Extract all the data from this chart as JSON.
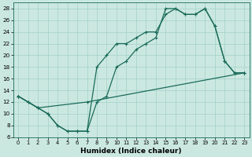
{
  "title": "",
  "xlabel": "Humidex (Indice chaleur)",
  "ylabel": "",
  "bg_color": "#cbe8e0",
  "grid_color": "#a8d4cc",
  "line_color": "#1a6b5a",
  "xlim": [
    -0.5,
    23.5
  ],
  "ylim": [
    6,
    29
  ],
  "xticks": [
    0,
    1,
    2,
    3,
    4,
    5,
    6,
    7,
    8,
    9,
    10,
    11,
    12,
    13,
    14,
    15,
    16,
    17,
    18,
    19,
    20,
    21,
    22,
    23
  ],
  "yticks": [
    6,
    8,
    10,
    12,
    14,
    16,
    18,
    20,
    22,
    24,
    26,
    28
  ],
  "line1_x": [
    0,
    1,
    2,
    3,
    4,
    5,
    6,
    7,
    8,
    9,
    10,
    11,
    12,
    13,
    14,
    15,
    16,
    17,
    18,
    19,
    20,
    21,
    22,
    23
  ],
  "line1_y": [
    13,
    12,
    11,
    10,
    8,
    7,
    7,
    7,
    12,
    13,
    18,
    19,
    21,
    22,
    23,
    28,
    28,
    27,
    27,
    28,
    25,
    19,
    17,
    17
  ],
  "line2_x": [
    0,
    1,
    2,
    3,
    4,
    5,
    6,
    7,
    8,
    9,
    10,
    11,
    12,
    13,
    14,
    15,
    16,
    17,
    18,
    19,
    20,
    21,
    22,
    23
  ],
  "line2_y": [
    13,
    12,
    11,
    10,
    8,
    7,
    7,
    7,
    18,
    20,
    22,
    22,
    23,
    24,
    24,
    27,
    28,
    27,
    27,
    28,
    25,
    19,
    17,
    17
  ],
  "line3_x": [
    0,
    2,
    7,
    23
  ],
  "line3_y": [
    13,
    11,
    12,
    17
  ],
  "marker": "+",
  "markersize": 3.5,
  "linewidth": 0.9
}
